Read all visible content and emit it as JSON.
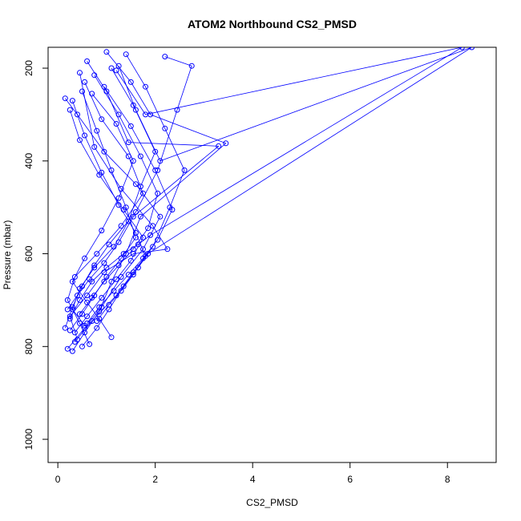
{
  "chart_data": {
    "type": "line",
    "title": "ATOM2 Northbound CS2_PMSD",
    "xlabel": "CS2_PMSD",
    "ylabel": "Pressure (mbar)",
    "xlim": [
      -0.2,
      9.0
    ],
    "ylim": [
      1050,
      155
    ],
    "y_reversed": true,
    "grid": false,
    "legend": "none",
    "x_ticks": [
      0,
      2,
      4,
      6,
      8
    ],
    "y_ticks": [
      200,
      400,
      600,
      800,
      1000
    ],
    "colors": {
      "series": "#0000ff",
      "axes": "#000000"
    },
    "marker": "open-circle",
    "series": [
      {
        "x": [
          0.2,
          0.55,
          0.9,
          1.3,
          1.75,
          2.1,
          1.6,
          0.95,
          0.4,
          0.15
        ],
        "y": [
          805,
          760,
          715,
          650,
          590,
          520,
          450,
          380,
          300,
          265
        ]
      },
      {
        "x": [
          0.35,
          0.7,
          1.2,
          1.55,
          1.95,
          2.3,
          2.6,
          2.2,
          1.8,
          1.4
        ],
        "y": [
          790,
          745,
          690,
          640,
          585,
          500,
          420,
          330,
          240,
          170
        ]
      },
      {
        "x": [
          0.3,
          0.55,
          0.85,
          1.1,
          1.4,
          1.7,
          3.45,
          1.9,
          1.5,
          1.0
        ],
        "y": [
          810,
          770,
          725,
          660,
          600,
          520,
          362,
          300,
          230,
          165
        ]
      },
      {
        "x": [
          0.5,
          0.8,
          1.05,
          1.35,
          1.65,
          1.85,
          8.5,
          2.1,
          1.6,
          1.25
        ],
        "y": [
          800,
          760,
          720,
          670,
          630,
          600,
          155,
          400,
          290,
          195
        ]
      },
      {
        "x": [
          0.4,
          0.25,
          0.6,
          0.95,
          1.55,
          2.25,
          1.95,
          1.3,
          0.75,
          0.45
        ],
        "y": [
          785,
          735,
          690,
          640,
          600,
          590,
          540,
          460,
          370,
          210
        ]
      },
      {
        "x": [
          0.15,
          0.3,
          0.5,
          0.75,
          1.05,
          1.6,
          2.05,
          2.45,
          2.75,
          2.2
        ],
        "y": [
          760,
          715,
          670,
          625,
          580,
          510,
          420,
          290,
          195,
          175
        ]
      },
      {
        "x": [
          0.65,
          0.45,
          0.2,
          0.35,
          0.8,
          1.3,
          1.75,
          1.45,
          0.9,
          0.55
        ],
        "y": [
          795,
          750,
          700,
          650,
          600,
          540,
          470,
          390,
          310,
          230
        ]
      },
      {
        "x": [
          0.25,
          0.45,
          0.7,
          1.0,
          1.35,
          1.65,
          1.9,
          8.3,
          1.8,
          1.2
        ],
        "y": [
          740,
          700,
          660,
          630,
          600,
          580,
          560,
          155,
          300,
          205
        ]
      },
      {
        "x": [
          1.1,
          0.85,
          0.6,
          0.3,
          0.55,
          0.9,
          1.25,
          1.55,
          1.2,
          0.7
        ],
        "y": [
          780,
          740,
          705,
          660,
          610,
          550,
          480,
          400,
          320,
          255
        ]
      },
      {
        "x": [
          0.2,
          0.4,
          0.65,
          0.95,
          1.25,
          1.55,
          3.3,
          1.45,
          1.0,
          0.6
        ],
        "y": [
          720,
          690,
          655,
          620,
          575,
          520,
          368,
          360,
          250,
          185
        ]
      },
      {
        "x": [
          0.55,
          0.3,
          0.45,
          0.75,
          1.15,
          1.45,
          1.7,
          2.0,
          1.55,
          1.1
        ],
        "y": [
          755,
          720,
          675,
          630,
          585,
          530,
          455,
          380,
          280,
          200
        ]
      },
      {
        "x": [
          0.35,
          0.6,
          0.9,
          1.2,
          1.5,
          1.75,
          1.35,
          0.85,
          0.45,
          0.25
        ],
        "y": [
          770,
          735,
          695,
          655,
          615,
          565,
          505,
          430,
          355,
          290
        ]
      },
      {
        "x": [
          0.8,
          1.05,
          1.3,
          1.55,
          1.8,
          1.6,
          1.25,
          0.9,
          0.55,
          0.3
        ],
        "y": [
          745,
          710,
          680,
          645,
          605,
          555,
          495,
          425,
          345,
          270
        ]
      },
      {
        "x": [
          0.45,
          0.7,
          0.95,
          1.25,
          1.55,
          1.85,
          2.05,
          1.7,
          1.25,
          0.75
        ],
        "y": [
          730,
          695,
          660,
          625,
          590,
          545,
          470,
          390,
          300,
          215
        ]
      },
      {
        "x": [
          0.25,
          0.5,
          0.75,
          1.0,
          1.3,
          1.6,
          1.4,
          1.1,
          0.8,
          0.5
        ],
        "y": [
          765,
          730,
          690,
          650,
          610,
          565,
          500,
          420,
          335,
          250
        ]
      },
      {
        "x": [
          0.6,
          0.85,
          1.15,
          1.45,
          1.75,
          2.05,
          2.35,
          2.0,
          1.5,
          0.95
        ],
        "y": [
          750,
          715,
          680,
          645,
          610,
          570,
          505,
          420,
          325,
          240
        ]
      }
    ]
  }
}
